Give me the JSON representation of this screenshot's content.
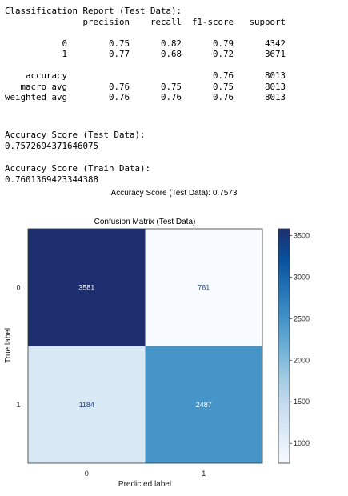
{
  "report": {
    "title": "Classification Report (Test Data):",
    "header": [
      "",
      "precision",
      "recall",
      "f1-score",
      "support"
    ],
    "rows": [
      {
        "label": "0",
        "precision": "0.75",
        "recall": "0.82",
        "f1": "0.79",
        "support": "4342"
      },
      {
        "label": "1",
        "precision": "0.77",
        "recall": "0.68",
        "f1": "0.72",
        "support": "3671"
      }
    ],
    "summary": [
      {
        "label": "accuracy",
        "precision": "",
        "recall": "",
        "f1": "0.76",
        "support": "8013"
      },
      {
        "label": "macro avg",
        "precision": "0.76",
        "recall": "0.75",
        "f1": "0.75",
        "support": "8013"
      },
      {
        "label": "weighted avg",
        "precision": "0.76",
        "recall": "0.76",
        "f1": "0.76",
        "support": "8013"
      }
    ]
  },
  "test_score": {
    "title": "Accuracy Score (Test Data):",
    "value": "0.7572694371646075"
  },
  "train_score": {
    "title": "Accuracy Score (Train Data):",
    "value": "0.7601369423344388"
  },
  "figure_title": "Accuracy Score (Test Data): 0.7573",
  "chart_data": {
    "type": "heatmap",
    "title": "Confusion Matrix (Test Data)",
    "xlabel": "Predicted label",
    "ylabel": "True label",
    "x_categories": [
      "0",
      "1"
    ],
    "y_categories": [
      "0",
      "1"
    ],
    "values": [
      [
        3581,
        761
      ],
      [
        1184,
        2487
      ]
    ],
    "colormap": "Blues",
    "colorbar": {
      "range": [
        761,
        3581
      ],
      "ticks": [
        1000,
        1500,
        2000,
        2500,
        3000,
        3500
      ]
    },
    "colors": {
      "darkest": "#08306b",
      "lightest": "#f7fbff",
      "high_text": "#ffffff",
      "low_text": "#1f3f8f"
    }
  }
}
